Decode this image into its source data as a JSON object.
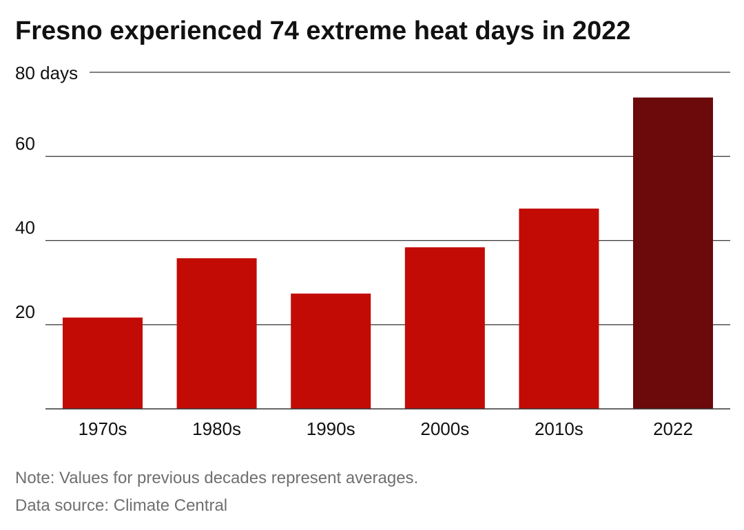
{
  "title": "Fresno experienced 74 extreme heat days in 2022",
  "note": "Note: Values for previous decades represent averages.",
  "source": "Data source: Climate Central",
  "colors": {
    "bar": "#c20b05",
    "bar_highlight": "#6b090b",
    "grid": "#333333",
    "text": "#111111",
    "muted": "#6f6f6f"
  },
  "chart_data": {
    "type": "bar",
    "title": "Fresno experienced 74 extreme heat days in 2022",
    "categories": [
      "1970s",
      "1980s",
      "1990s",
      "2000s",
      "2010s",
      "2022"
    ],
    "values": [
      21.7,
      35.8,
      27.4,
      38.4,
      47.6,
      74
    ],
    "highlight_index": 5,
    "ylim": [
      0,
      80
    ],
    "yticks": [
      20,
      40,
      60,
      80
    ],
    "ytick_labels": [
      "20",
      "40",
      "60",
      "80 days"
    ],
    "xlabel": "",
    "ylabel": "",
    "grid": true,
    "legend": "none"
  }
}
